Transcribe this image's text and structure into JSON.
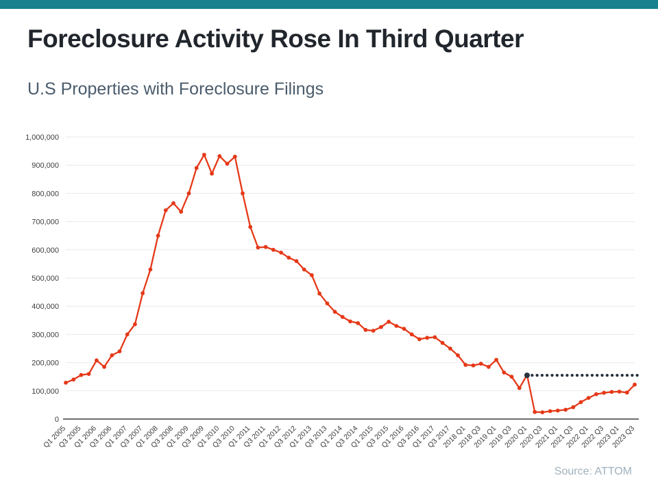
{
  "page": {
    "title": "Foreclosure Activity Rose In Third Quarter",
    "subtitle": "U.S Properties with Foreclosure Filings",
    "source": "Source: ATTOM",
    "accent_bar_color": "#19808e"
  },
  "chart_data": {
    "type": "line",
    "title": "U.S Properties with Foreclosure Filings",
    "quarters": [
      "2005 Q1",
      "2005 Q2",
      "2005 Q3",
      "2005 Q4",
      "2006 Q1",
      "2006 Q2",
      "2006 Q3",
      "2006 Q4",
      "2007 Q1",
      "2007 Q2",
      "2007 Q3",
      "2007 Q4",
      "2008 Q1",
      "2008 Q2",
      "2008 Q3",
      "2008 Q4",
      "2009 Q1",
      "2009 Q2",
      "2009 Q3",
      "2009 Q4",
      "2010 Q1",
      "2010 Q2",
      "2010 Q3",
      "2010 Q4",
      "2011 Q1",
      "2011 Q2",
      "2011 Q3",
      "2011 Q4",
      "2012 Q1",
      "2012 Q2",
      "2012 Q3",
      "2012 Q4",
      "2013 Q1",
      "2013 Q2",
      "2013 Q3",
      "2013 Q4",
      "2014 Q1",
      "2014 Q2",
      "2014 Q3",
      "2014 Q4",
      "2015 Q1",
      "2015 Q2",
      "2015 Q3",
      "2015 Q4",
      "2016 Q1",
      "2016 Q2",
      "2016 Q3",
      "2016 Q4",
      "2017 Q1",
      "2017 Q2",
      "2017 Q3",
      "2017 Q4",
      "2018 Q1",
      "2018 Q2",
      "2018 Q3",
      "2018 Q4",
      "2019 Q1",
      "2019 Q2",
      "2019 Q3",
      "2019 Q4",
      "2020 Q1",
      "2020 Q2",
      "2020 Q3",
      "2020 Q4",
      "2021 Q1",
      "2021 Q2",
      "2021 Q3",
      "2021 Q4",
      "2022 Q1",
      "2022 Q2",
      "2022 Q3",
      "2022 Q4",
      "2023 Q1",
      "2023 Q2",
      "2023 Q3"
    ],
    "values": [
      129000,
      140000,
      156000,
      160000,
      208000,
      185000,
      226000,
      240000,
      300000,
      336000,
      446000,
      530000,
      650000,
      740000,
      765000,
      735000,
      800000,
      890000,
      937000,
      870000,
      932000,
      905000,
      930000,
      800000,
      681000,
      608000,
      610000,
      600000,
      590000,
      572000,
      560000,
      530000,
      510000,
      445000,
      410000,
      380000,
      362000,
      346000,
      340000,
      316000,
      313000,
      326000,
      345000,
      330000,
      320000,
      300000,
      283000,
      288000,
      290000,
      270000,
      250000,
      226000,
      192000,
      190000,
      196000,
      185000,
      210000,
      165000,
      150000,
      110000,
      156000,
      25000,
      24000,
      28000,
      30000,
      33000,
      42000,
      60000,
      75000,
      88000,
      93000,
      96000,
      97000,
      94000,
      122000
    ],
    "x_tick_labels": [
      "Q1 2005",
      "Q3 2005",
      "Q1 2006",
      "Q3 2006",
      "Q1 2007",
      "Q3 2007",
      "Q1 2008",
      "Q3 2008",
      "Q1 2009",
      "Q3 2009",
      "Q1 2010",
      "Q3 2010",
      "Q1 2011",
      "Q3 2011",
      "Q1 2012",
      "Q3 2012",
      "Q1 2013",
      "Q3 2013",
      "Q1 2014",
      "Q3 2014",
      "Q1 2015",
      "Q3 2015",
      "Q1 2016",
      "Q3 2016",
      "Q1 2017",
      "Q3 2017",
      "2018 Q1",
      "2018 Q3",
      "2019 Q1",
      "2019 Q3",
      "2020 Q1",
      "2020 Q3",
      "2021 Q1",
      "2021 Q3",
      "2022 Q1",
      "2022 Q3",
      "2023 Q1",
      "2023 Q3"
    ],
    "y_ticks": [
      0,
      100000,
      200000,
      300000,
      400000,
      500000,
      600000,
      700000,
      800000,
      900000,
      1000000
    ],
    "ylim": [
      0,
      1000000
    ],
    "grid": true,
    "legend": "none",
    "line_color": "#e53817",
    "marker_color": "#e53817",
    "reference_line": {
      "value": 155000,
      "start_quarter": "2020 Q1",
      "start_index": 60,
      "style": "dotted",
      "color": "#26323e"
    }
  }
}
